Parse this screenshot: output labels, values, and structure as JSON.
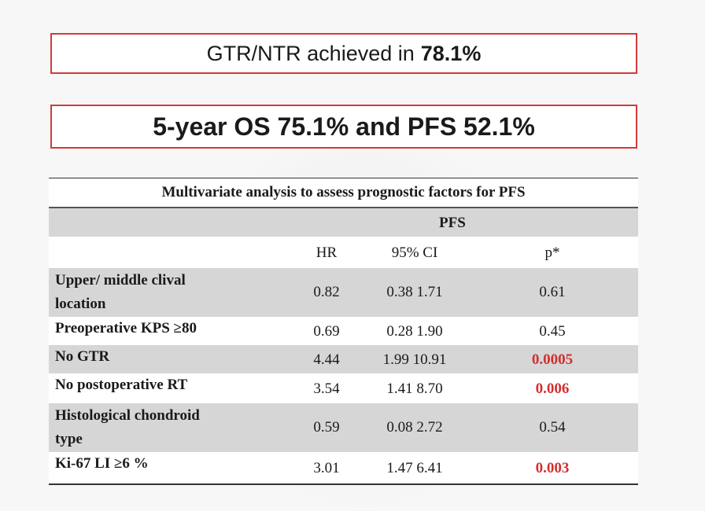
{
  "banner1": {
    "text": "GTR/NTR achieved in",
    "value": "78.1%"
  },
  "banner2": {
    "text": "5-year OS 75.1% and PFS 52.1%"
  },
  "table": {
    "caption": "Multivariate analysis to assess prognostic factors for PFS",
    "group_header": "PFS",
    "columns": {
      "hr": "HR",
      "ci": "95% CI",
      "p": "p*"
    },
    "rows": [
      {
        "label1": "Upper/ middle clival",
        "label2": "location",
        "hr": "0.82",
        "ci": "0.38  1.71",
        "p": "0.61"
      },
      {
        "label1": "Preoperative KPS ≥80",
        "label2": "",
        "hr": "0.69",
        "ci": "0.28  1.90",
        "p": "0.45"
      },
      {
        "label1": "No GTR",
        "label2": "",
        "hr": "4.44",
        "ci": "1.99  10.91",
        "p": "0.0005"
      },
      {
        "label1": "No postoperative RT",
        "label2": "",
        "hr": "3.54",
        "ci": "1.41  8.70",
        "p": "0.006"
      },
      {
        "label1": "Histological chondroid",
        "label2": "type",
        "hr": "0.59",
        "ci": "0.08  2.72",
        "p": "0.54"
      },
      {
        "label1": "Ki-67 LI ≥6 %",
        "label2": "",
        "hr": "3.01",
        "ci": "1.47  6.41",
        "p": "0.003"
      }
    ]
  },
  "colors": {
    "box_border": "#d23a3a",
    "significant": "#d32f2f",
    "shade": "#d6d6d6"
  }
}
